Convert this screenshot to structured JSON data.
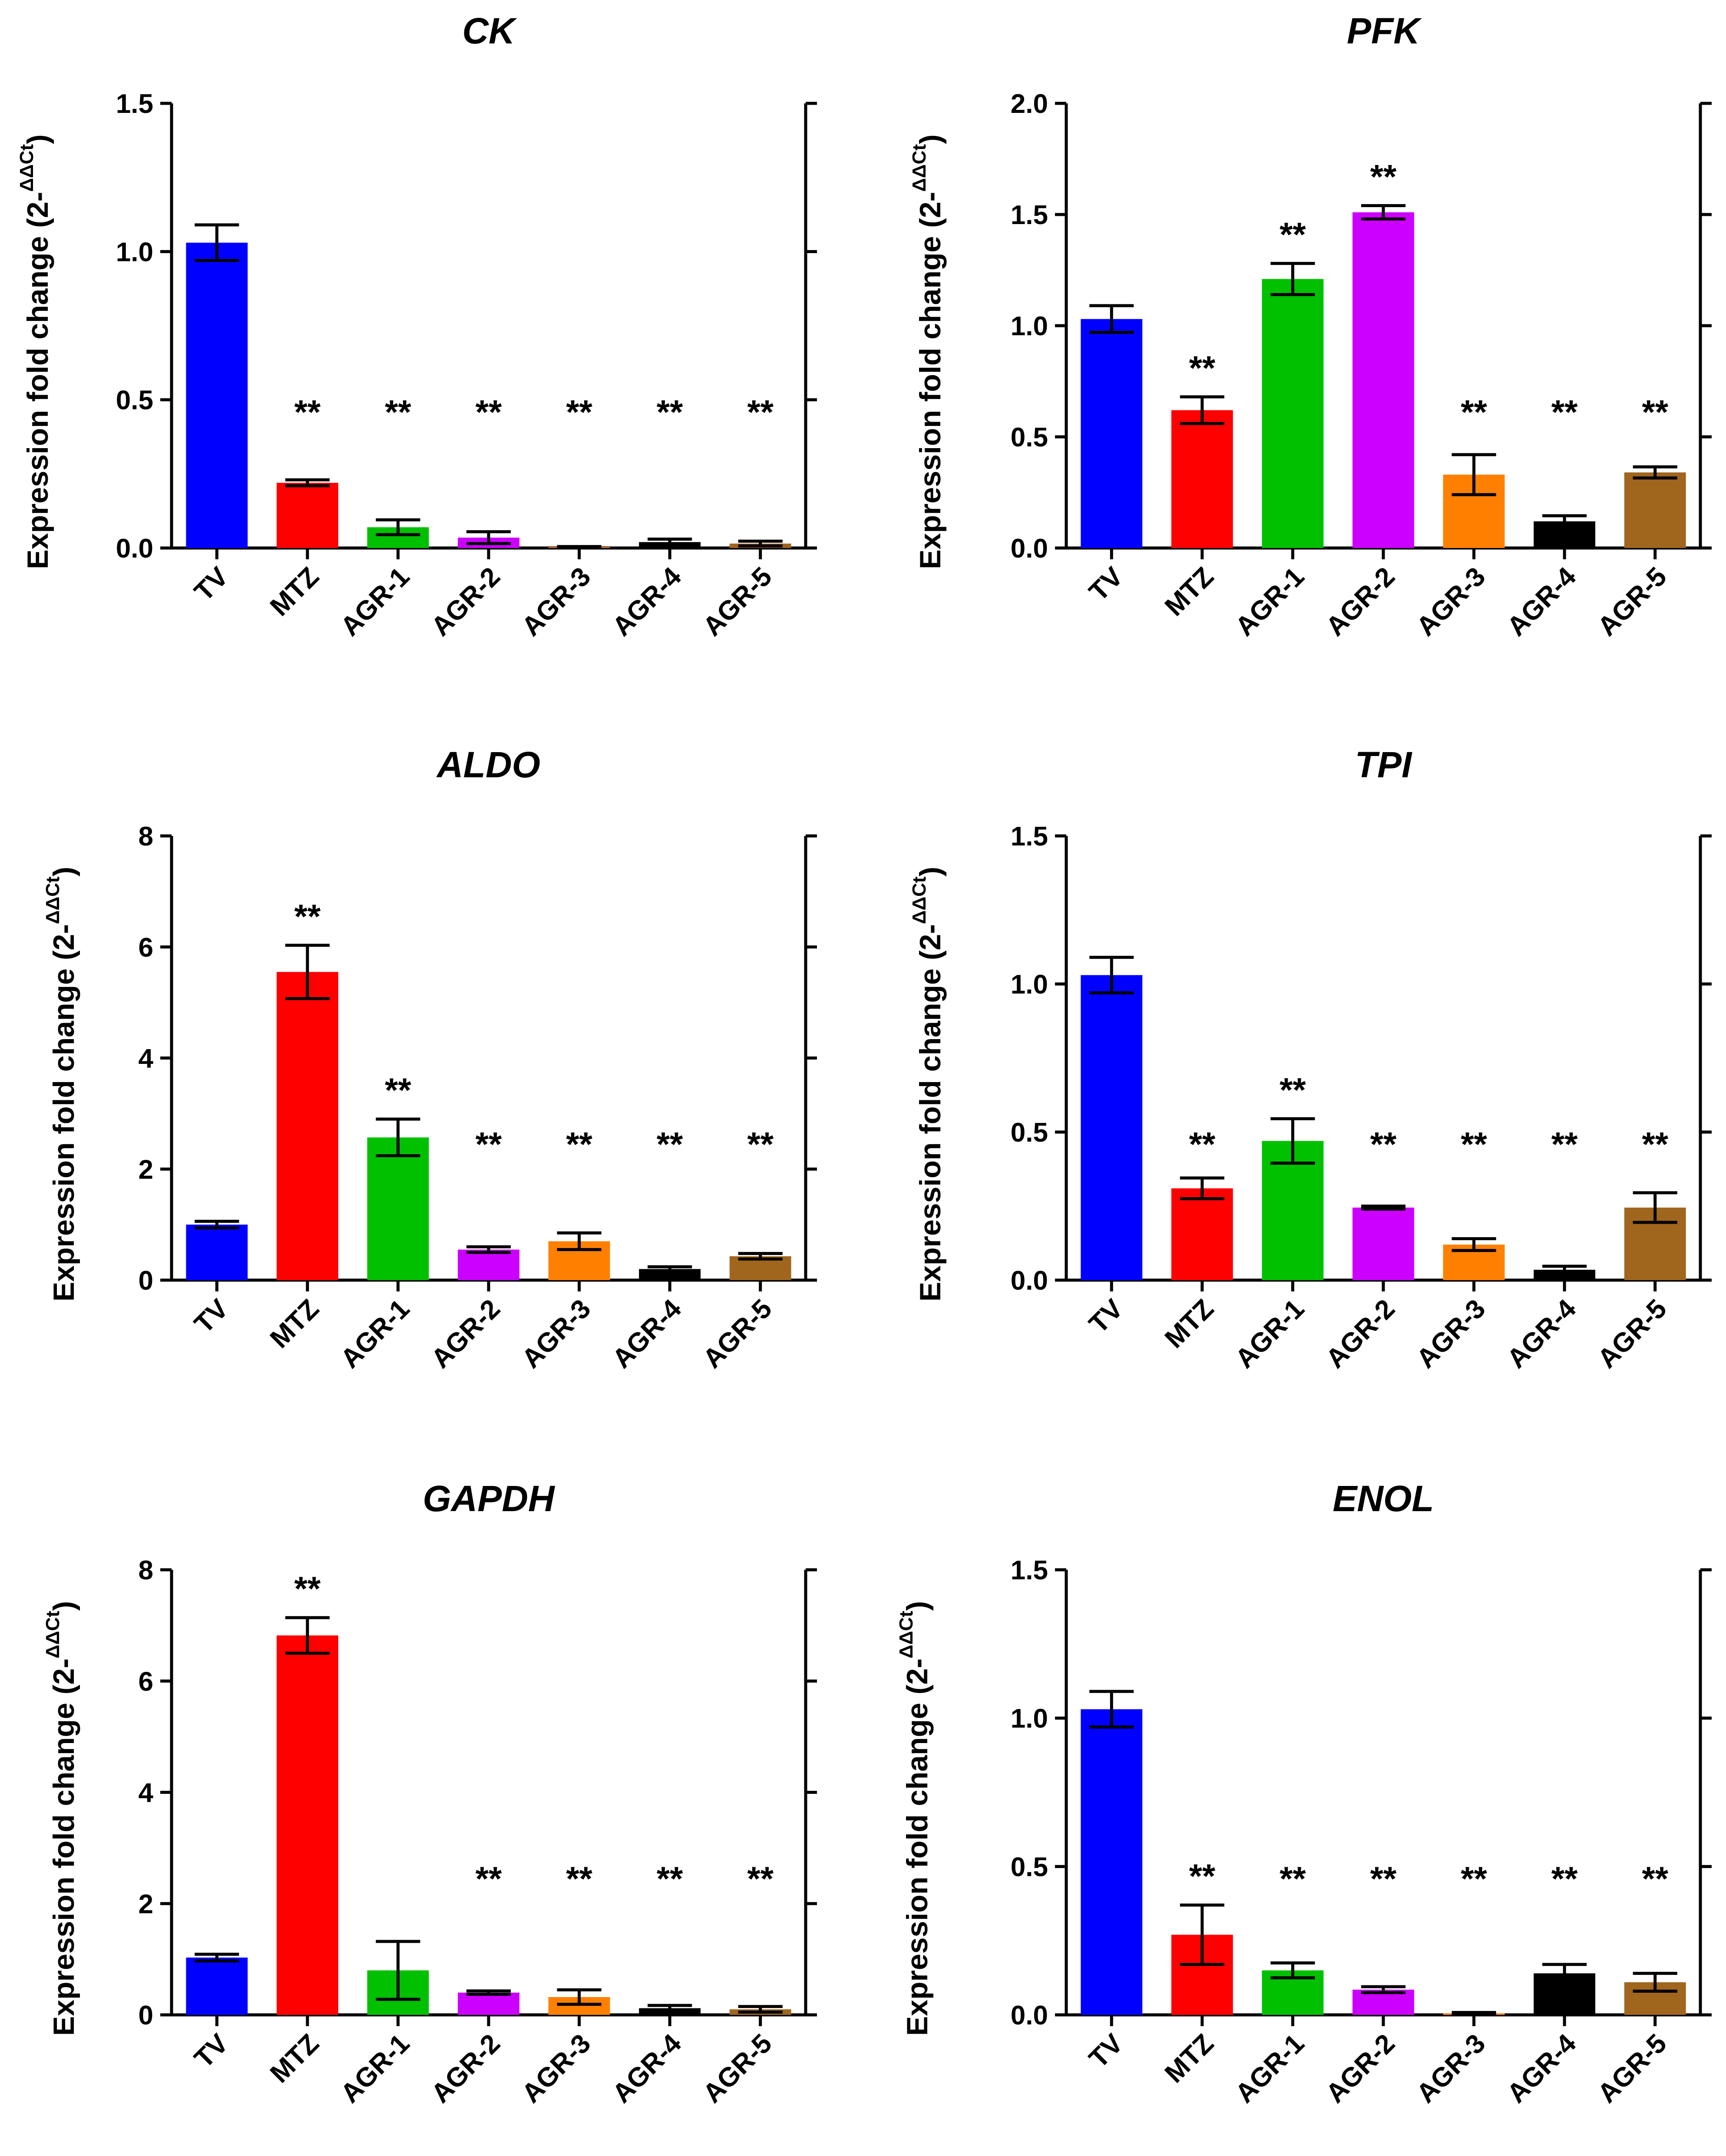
{
  "chart_data": [
    {
      "type": "bar",
      "title": "CK",
      "ylabel": "Expression fold change (2-",
      "ylabel_sup": "ΔΔCt",
      "ylabel_close": ")",
      "categories": [
        "TV",
        "MTZ",
        "AGR-1",
        "AGR-2",
        "AGR-3",
        "AGR-4",
        "AGR-5"
      ],
      "values": [
        1.03,
        0.22,
        0.07,
        0.035,
        0.003,
        0.02,
        0.015
      ],
      "errors": [
        0.06,
        0.01,
        0.025,
        0.02,
        0.002,
        0.01,
        0.008
      ],
      "significance": [
        "",
        "**",
        "**",
        "**",
        "**",
        "**",
        "**"
      ],
      "ylim": [
        0,
        1.5
      ],
      "yticks": [
        0,
        0.5,
        1.0,
        1.5
      ],
      "ytick_labels": [
        "0.0",
        "0.5",
        "1.0",
        "1.5"
      ],
      "grid": false
    },
    {
      "type": "bar",
      "title": "PFK",
      "ylabel": "Expression fold change (2-",
      "ylabel_sup": "ΔΔCt",
      "ylabel_close": ")",
      "categories": [
        "TV",
        "MTZ",
        "AGR-1",
        "AGR-2",
        "AGR-3",
        "AGR-4",
        "AGR-5"
      ],
      "values": [
        1.03,
        0.62,
        1.21,
        1.51,
        0.33,
        0.12,
        0.34
      ],
      "errors": [
        0.06,
        0.06,
        0.07,
        0.03,
        0.09,
        0.025,
        0.025
      ],
      "significance": [
        "",
        "**",
        "**",
        "**",
        "**",
        "**",
        "**"
      ],
      "ylim": [
        0,
        2.0
      ],
      "yticks": [
        0,
        0.5,
        1.0,
        1.5,
        2.0
      ],
      "ytick_labels": [
        "0.0",
        "0.5",
        "1.0",
        "1.5",
        "2.0"
      ],
      "grid": false
    },
    {
      "type": "bar",
      "title": "ALDO",
      "ylabel": "Expression fold change (2-",
      "ylabel_sup": "ΔΔCt",
      "ylabel_close": ")",
      "categories": [
        "TV",
        "MTZ",
        "AGR-1",
        "AGR-2",
        "AGR-3",
        "AGR-4",
        "AGR-5"
      ],
      "values": [
        1.0,
        5.55,
        2.57,
        0.55,
        0.7,
        0.2,
        0.43
      ],
      "errors": [
        0.06,
        0.48,
        0.33,
        0.05,
        0.15,
        0.04,
        0.05
      ],
      "significance": [
        "",
        "**",
        "**",
        "**",
        "**",
        "**",
        "**"
      ],
      "ylim": [
        0,
        8
      ],
      "yticks": [
        0,
        2,
        4,
        6,
        8
      ],
      "ytick_labels": [
        "0",
        "2",
        "4",
        "6",
        "8"
      ],
      "grid": false
    },
    {
      "type": "bar",
      "title": "TPI",
      "ylabel": "Expression fold change (2-",
      "ylabel_sup": "ΔΔCt",
      "ylabel_close": ")",
      "categories": [
        "TV",
        "MTZ",
        "AGR-1",
        "AGR-2",
        "AGR-3",
        "AGR-4",
        "AGR-5"
      ],
      "values": [
        1.03,
        0.31,
        0.47,
        0.245,
        0.12,
        0.035,
        0.245
      ],
      "errors": [
        0.06,
        0.035,
        0.075,
        0.005,
        0.02,
        0.012,
        0.05
      ],
      "significance": [
        "",
        "**",
        "**",
        "**",
        "**",
        "**",
        "**"
      ],
      "ylim": [
        0,
        1.5
      ],
      "yticks": [
        0,
        0.5,
        1.0,
        1.5
      ],
      "ytick_labels": [
        "0.0",
        "0.5",
        "1.0",
        "1.5"
      ],
      "grid": false
    },
    {
      "type": "bar",
      "title": "GAPDH",
      "ylabel": "Expression fold change (2-",
      "ylabel_sup": "ΔΔCt",
      "ylabel_close": ")",
      "categories": [
        "TV",
        "MTZ",
        "AGR-1",
        "AGR-2",
        "AGR-3",
        "AGR-4",
        "AGR-5"
      ],
      "values": [
        1.03,
        6.82,
        0.8,
        0.4,
        0.32,
        0.12,
        0.1
      ],
      "errors": [
        0.06,
        0.32,
        0.52,
        0.03,
        0.13,
        0.05,
        0.05
      ],
      "significance": [
        "",
        "**",
        "",
        "**",
        "**",
        "**",
        "**"
      ],
      "ylim": [
        0,
        8
      ],
      "yticks": [
        0,
        2,
        4,
        6,
        8
      ],
      "ytick_labels": [
        "0",
        "2",
        "4",
        "6",
        "8"
      ],
      "grid": false
    },
    {
      "type": "bar",
      "title": "ENOL",
      "ylabel": "Expression fold change (2-",
      "ylabel_sup": "ΔΔCt",
      "ylabel_close": ")",
      "categories": [
        "TV",
        "MTZ",
        "AGR-1",
        "AGR-2",
        "AGR-3",
        "AGR-4",
        "AGR-5"
      ],
      "values": [
        1.03,
        0.27,
        0.15,
        0.085,
        0.005,
        0.14,
        0.11
      ],
      "errors": [
        0.06,
        0.1,
        0.025,
        0.01,
        0.003,
        0.03,
        0.03
      ],
      "significance": [
        "",
        "**",
        "**",
        "**",
        "**",
        "**",
        "**"
      ],
      "ylim": [
        0,
        1.5
      ],
      "yticks": [
        0,
        0.5,
        1.0,
        1.5
      ],
      "ytick_labels": [
        "0.0",
        "0.5",
        "1.0",
        "1.5"
      ],
      "grid": false
    }
  ],
  "bar_colors": [
    "#0000ff",
    "#ff0000",
    "#00c000",
    "#cc00ff",
    "#ff8000",
    "#000000",
    "#a0661e"
  ]
}
